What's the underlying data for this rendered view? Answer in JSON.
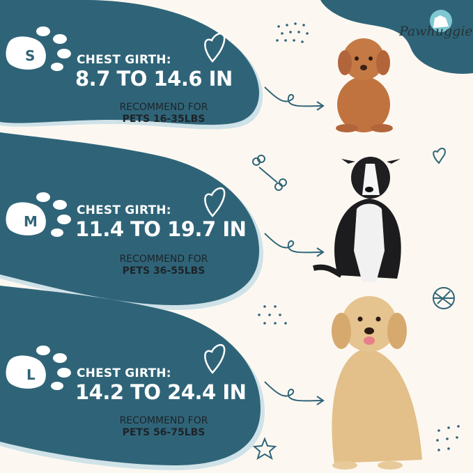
{
  "brand": {
    "name": "Pawhuggies"
  },
  "colors": {
    "primary": "#2f6478",
    "background": "#fcf8f1",
    "text_dark": "#1d2328",
    "logo_circle": "#7fc7d1"
  },
  "sizes": [
    {
      "size": "S",
      "label": "CHEST GIRTH:",
      "range": "8.7 TO 14.6 IN",
      "recommend": "RECOMMEND FOR",
      "weight": "PETS 16-35LBS",
      "dog": "poodle"
    },
    {
      "size": "M",
      "label": "CHEST GIRTH:",
      "range": "11.4 TO 19.7 IN",
      "recommend": "RECOMMEND FOR",
      "weight": "PETS 36-55LBS",
      "dog": "border-collie"
    },
    {
      "size": "L",
      "label": "CHEST GIRTH:",
      "range": "14.2 TO 24.4 IN",
      "recommend": "RECOMMEND FOR",
      "weight": "PETS 56-75LBS",
      "dog": "golden-retriever"
    }
  ],
  "icons": [
    "paw-icon",
    "heart-icon",
    "arrow-icon",
    "bone-icon",
    "yarn-ball-icon",
    "star-icon",
    "dots-icon"
  ]
}
